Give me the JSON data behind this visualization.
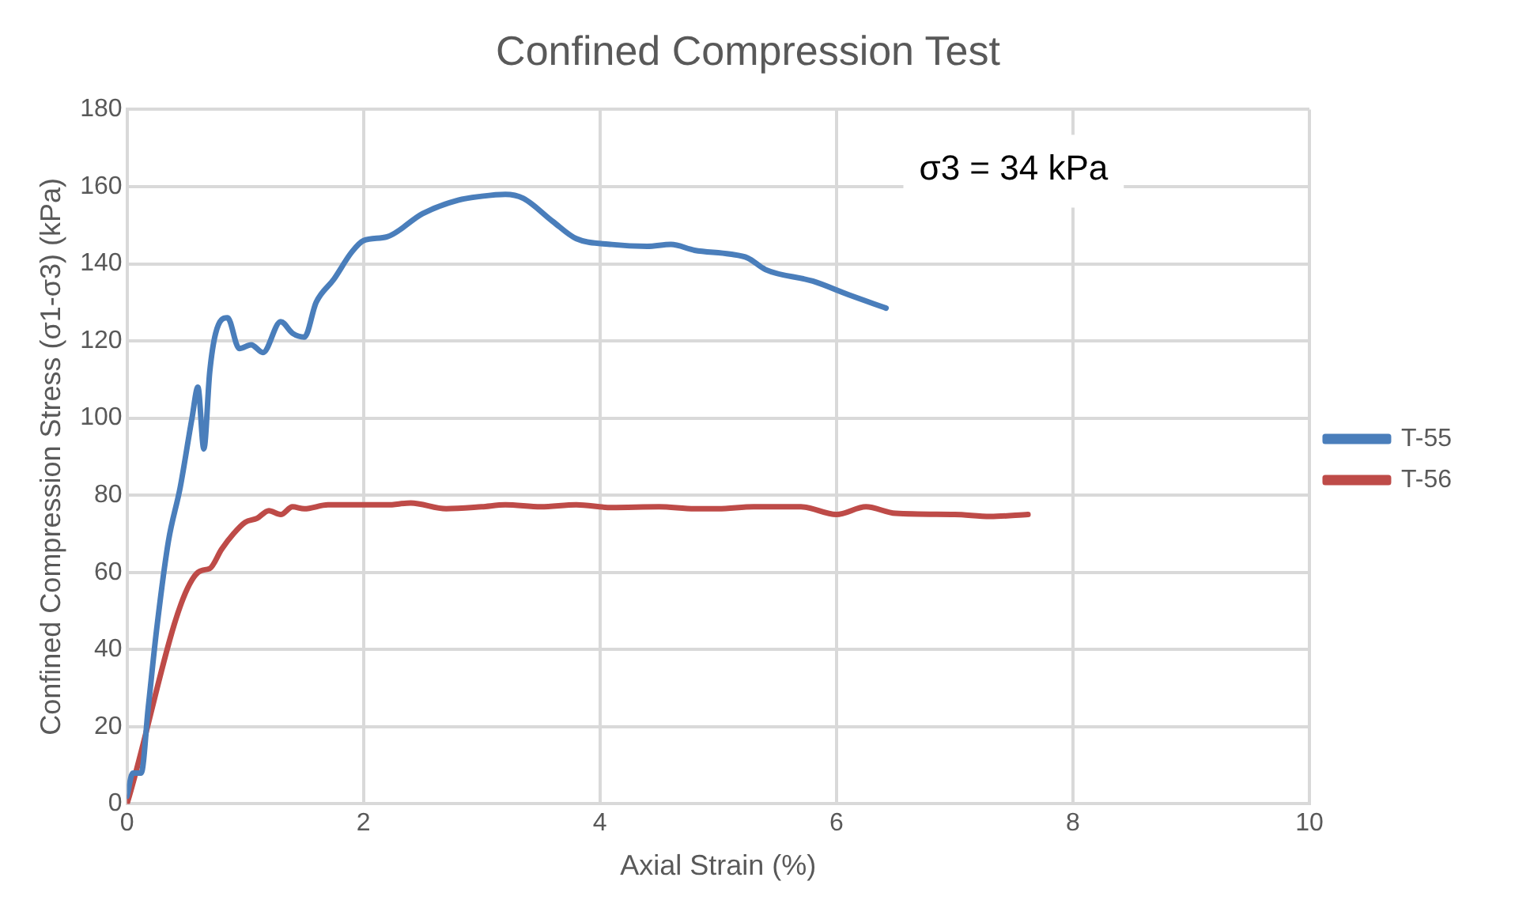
{
  "chart_data": {
    "type": "line",
    "title": "Confined Compression Test",
    "xlabel": "Axial Strain (%)",
    "ylabel": "Confined Compression Stress (σ1-σ3) (kPa)",
    "annotations": [
      "σ3 = 34 kPa"
    ],
    "xlim": [
      0,
      10
    ],
    "xticks": [
      0,
      2,
      4,
      6,
      8,
      10
    ],
    "ylim": [
      0,
      180
    ],
    "yticks": [
      0,
      20,
      40,
      60,
      80,
      100,
      120,
      140,
      160,
      180
    ],
    "grid": true,
    "legend": "right",
    "marker": "none",
    "line_style": "solid",
    "series": [
      {
        "name": "T-55",
        "color": "#4a7ebb",
        "x": [
          0,
          0.05,
          0.12,
          0.18,
          0.25,
          0.35,
          0.45,
          0.55,
          0.6,
          0.65,
          0.7,
          0.75,
          0.85,
          0.95,
          1.05,
          1.15,
          1.3,
          1.4,
          1.5,
          1.6,
          1.75,
          1.9,
          2.0,
          2.2,
          2.5,
          2.8,
          3.0,
          3.2,
          3.35,
          3.6,
          3.8,
          4.1,
          4.4,
          4.6,
          4.8,
          5.1,
          5.25,
          5.4,
          5.8,
          6.1,
          6.42
        ],
        "values": [
          2,
          8,
          8,
          25,
          45,
          68,
          82,
          100,
          108,
          92,
          112,
          122,
          126,
          118,
          119,
          117,
          125,
          122,
          121,
          130,
          136,
          143,
          146,
          147,
          153,
          156.5,
          157.5,
          158,
          157,
          151,
          146.5,
          145,
          144.5,
          145,
          143.5,
          142.5,
          141.5,
          138.5,
          135.5,
          132,
          128.5
        ]
      },
      {
        "name": "T-56",
        "color": "#be4b48",
        "x": [
          0,
          0.6,
          0.7,
          0.8,
          0.9,
          1.0,
          1.1,
          1.2,
          1.3,
          1.4,
          1.5,
          1.7,
          2.0,
          2.2,
          2.4,
          2.7,
          3.0,
          3.2,
          3.5,
          3.8,
          4.1,
          4.5,
          4.8,
          5.0,
          5.3,
          5.7,
          6.0,
          6.25,
          6.5,
          7.0,
          7.3,
          7.62
        ],
        "values": [
          0,
          60,
          61,
          66,
          70,
          73,
          74,
          76,
          75,
          77,
          76.5,
          77.5,
          77.5,
          77.5,
          78,
          76.5,
          77,
          77.5,
          77,
          77.5,
          76.8,
          77,
          76.5,
          76.5,
          77,
          77,
          75,
          77,
          75.3,
          75,
          74.5,
          75
        ]
      }
    ]
  }
}
